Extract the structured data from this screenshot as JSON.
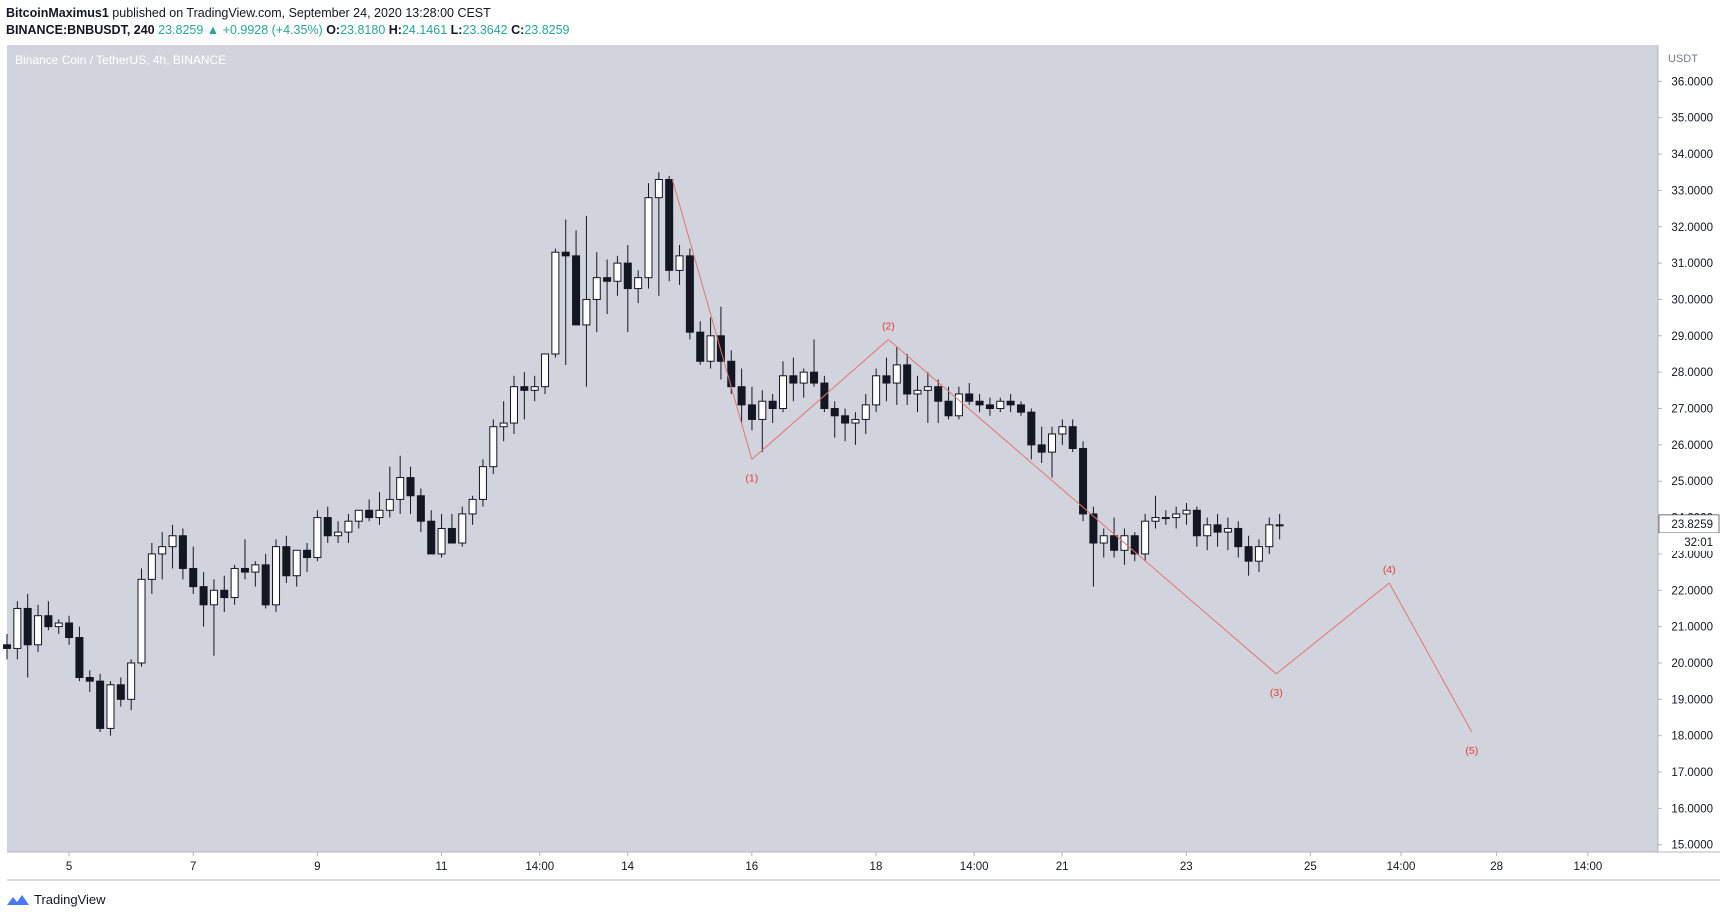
{
  "header": {
    "author": "BitcoinMaximus1",
    "published_text": "published on TradingView.com, September 24, 2020 13:28:00 CEST",
    "symbol": "BINANCE:BNBUSDT, 240",
    "last": "23.8259",
    "change": "▲ +0.9928 (+4.35%)",
    "o_label": "O:",
    "o_value": "23.8180",
    "h_label": "H:",
    "h_value": "24.1461",
    "l_label": "L:",
    "l_value": "23.3642",
    "c_label": "C:",
    "c_value": "23.8259"
  },
  "chart_title": "Binance Coin / TetherUS, 4h, BINANCE",
  "brand": "TradingView",
  "colors": {
    "plot_bg": "#d1d4dc",
    "up_candle": "#ffffff",
    "down_candle": "#131722",
    "wave": "#e57373",
    "wave_label": "#e53935",
    "accent_up": "#26a69a"
  },
  "chart_data": {
    "type": "candlestick",
    "currency": "USDT",
    "ylim": [
      14.8,
      37.0
    ],
    "y_ticks": [
      "15.0000",
      "16.0000",
      "17.0000",
      "18.0000",
      "19.0000",
      "20.0000",
      "21.0000",
      "22.0000",
      "23.0000",
      "24.0000",
      "25.0000",
      "26.0000",
      "27.0000",
      "28.0000",
      "29.0000",
      "30.0000",
      "31.0000",
      "32.0000",
      "33.0000",
      "34.0000",
      "35.0000",
      "36.0000"
    ],
    "x_ticks": [
      {
        "label": "5",
        "t": 5.0
      },
      {
        "label": "7",
        "t": 7.0
      },
      {
        "label": "9",
        "t": 9.0
      },
      {
        "label": "11",
        "t": 11.0
      },
      {
        "label": "14:00",
        "t": 12.583
      },
      {
        "label": "14",
        "t": 14.0
      },
      {
        "label": "16",
        "t": 16.0
      },
      {
        "label": "18",
        "t": 18.0
      },
      {
        "label": "14:00",
        "t": 19.583
      },
      {
        "label": "21",
        "t": 21.0
      },
      {
        "label": "23",
        "t": 23.0
      },
      {
        "label": "25",
        "t": 25.0
      },
      {
        "label": "14:00",
        "t": 26.46
      },
      {
        "label": "28",
        "t": 28.0
      },
      {
        "label": "14:00",
        "t": 29.47
      }
    ],
    "last_price_label": "23.8259",
    "countdown_label": "32:01",
    "t_start": 4.0,
    "t_step": 0.1667,
    "candles": [
      [
        20.5,
        20.8,
        20.1,
        20.4
      ],
      [
        20.4,
        21.7,
        20.1,
        21.5
      ],
      [
        21.5,
        21.9,
        19.6,
        20.5
      ],
      [
        20.5,
        21.6,
        20.3,
        21.3
      ],
      [
        21.3,
        21.7,
        20.9,
        21.0
      ],
      [
        21.0,
        21.2,
        20.8,
        21.1
      ],
      [
        21.1,
        21.3,
        20.5,
        20.7
      ],
      [
        20.7,
        21.0,
        19.5,
        19.6
      ],
      [
        19.6,
        19.8,
        19.2,
        19.5
      ],
      [
        19.5,
        19.7,
        18.1,
        18.2
      ],
      [
        18.2,
        19.5,
        18.0,
        19.4
      ],
      [
        19.4,
        19.6,
        18.8,
        19.0
      ],
      [
        19.0,
        20.1,
        18.7,
        20.0
      ],
      [
        20.0,
        22.6,
        19.9,
        22.3
      ],
      [
        22.3,
        23.3,
        21.9,
        23.0
      ],
      [
        23.0,
        23.6,
        22.3,
        23.2
      ],
      [
        23.2,
        23.8,
        22.6,
        23.5
      ],
      [
        23.5,
        23.7,
        22.3,
        22.6
      ],
      [
        22.6,
        23.2,
        21.9,
        22.1
      ],
      [
        22.1,
        22.5,
        21.0,
        21.6
      ],
      [
        21.6,
        22.3,
        20.2,
        22.0
      ],
      [
        22.0,
        22.4,
        21.4,
        21.8
      ],
      [
        21.8,
        22.7,
        21.6,
        22.6
      ],
      [
        22.6,
        23.4,
        22.3,
        22.5
      ],
      [
        22.5,
        22.8,
        22.1,
        22.7
      ],
      [
        22.7,
        23.0,
        21.5,
        21.6
      ],
      [
        21.6,
        23.4,
        21.4,
        23.2
      ],
      [
        23.2,
        23.5,
        22.2,
        22.4
      ],
      [
        22.4,
        23.1,
        22.1,
        23.1
      ],
      [
        23.1,
        23.3,
        22.5,
        22.9
      ],
      [
        22.9,
        24.2,
        22.8,
        24.0
      ],
      [
        24.0,
        24.3,
        23.3,
        23.5
      ],
      [
        23.5,
        23.9,
        23.3,
        23.6
      ],
      [
        23.6,
        24.1,
        23.3,
        23.9
      ],
      [
        23.9,
        24.2,
        23.7,
        24.2
      ],
      [
        24.2,
        24.5,
        23.9,
        24.0
      ],
      [
        24.0,
        24.7,
        23.8,
        24.2
      ],
      [
        24.2,
        25.4,
        24.0,
        24.5
      ],
      [
        24.5,
        25.7,
        24.1,
        25.1
      ],
      [
        25.1,
        25.4,
        24.1,
        24.6
      ],
      [
        24.6,
        24.8,
        23.6,
        23.9
      ],
      [
        23.9,
        24.2,
        23.0,
        23.0
      ],
      [
        23.0,
        24.1,
        22.9,
        23.7
      ],
      [
        23.7,
        24.1,
        23.3,
        23.3
      ],
      [
        23.3,
        24.3,
        23.2,
        24.1
      ],
      [
        24.1,
        24.6,
        23.8,
        24.5
      ],
      [
        24.5,
        25.6,
        24.3,
        25.4
      ],
      [
        25.4,
        26.7,
        25.2,
        26.5
      ],
      [
        26.5,
        27.2,
        26.1,
        26.6
      ],
      [
        26.6,
        27.9,
        26.3,
        27.6
      ],
      [
        27.6,
        28.0,
        26.7,
        27.5
      ],
      [
        27.5,
        27.9,
        27.2,
        27.6
      ],
      [
        27.6,
        28.3,
        27.4,
        28.5
      ],
      [
        28.5,
        31.4,
        28.4,
        31.3
      ],
      [
        31.3,
        32.2,
        28.2,
        31.2
      ],
      [
        31.2,
        31.9,
        29.4,
        29.3
      ],
      [
        29.3,
        32.3,
        27.6,
        30.0
      ],
      [
        30.0,
        31.3,
        29.1,
        30.6
      ],
      [
        30.6,
        31.1,
        29.6,
        30.5
      ],
      [
        30.5,
        31.2,
        30.1,
        31.0
      ],
      [
        31.0,
        31.5,
        29.1,
        30.3
      ],
      [
        30.3,
        30.8,
        29.9,
        30.6
      ],
      [
        30.6,
        33.2,
        30.3,
        32.8
      ],
      [
        32.8,
        33.5,
        30.1,
        33.3
      ],
      [
        33.3,
        33.4,
        30.5,
        30.8
      ],
      [
        30.8,
        31.5,
        30.4,
        31.2
      ],
      [
        31.2,
        31.4,
        28.9,
        29.1
      ],
      [
        29.1,
        29.4,
        28.2,
        28.3
      ],
      [
        28.3,
        29.5,
        28.1,
        29.0
      ],
      [
        29.0,
        29.8,
        27.8,
        28.3
      ],
      [
        28.3,
        28.6,
        27.4,
        27.6
      ],
      [
        27.6,
        28.1,
        26.6,
        27.1
      ],
      [
        27.1,
        27.6,
        26.4,
        26.7
      ],
      [
        26.7,
        27.5,
        25.8,
        27.2
      ],
      [
        27.2,
        27.4,
        26.6,
        27.0
      ],
      [
        27.0,
        28.3,
        26.9,
        27.9
      ],
      [
        27.9,
        28.4,
        27.2,
        27.7
      ],
      [
        27.7,
        28.1,
        27.3,
        28.0
      ],
      [
        28.0,
        28.9,
        27.6,
        27.7
      ],
      [
        27.7,
        27.9,
        26.9,
        27.0
      ],
      [
        27.0,
        27.2,
        26.2,
        26.8
      ],
      [
        26.8,
        27.0,
        26.1,
        26.6
      ],
      [
        26.6,
        26.9,
        26.0,
        26.7
      ],
      [
        26.7,
        27.4,
        26.3,
        27.1
      ],
      [
        27.1,
        28.1,
        26.9,
        27.9
      ],
      [
        27.9,
        28.4,
        27.2,
        27.7
      ],
      [
        27.7,
        28.7,
        27.1,
        28.2
      ],
      [
        28.2,
        28.5,
        27.1,
        27.4
      ],
      [
        27.4,
        27.9,
        26.9,
        27.5
      ],
      [
        27.5,
        28.0,
        26.6,
        27.6
      ],
      [
        27.6,
        27.8,
        26.6,
        27.2
      ],
      [
        27.2,
        27.6,
        26.7,
        26.8
      ],
      [
        26.8,
        27.6,
        26.7,
        27.4
      ],
      [
        27.4,
        27.7,
        27.1,
        27.2
      ],
      [
        27.2,
        27.4,
        26.9,
        27.1
      ],
      [
        27.1,
        27.3,
        26.8,
        27.0
      ],
      [
        27.0,
        27.3,
        26.9,
        27.2
      ],
      [
        27.2,
        27.4,
        26.9,
        27.1
      ],
      [
        27.1,
        27.2,
        26.8,
        26.9
      ],
      [
        26.9,
        27.0,
        25.6,
        26.0
      ],
      [
        26.0,
        26.5,
        25.5,
        25.8
      ],
      [
        25.8,
        26.5,
        25.1,
        26.3
      ],
      [
        26.3,
        26.7,
        26.0,
        26.5
      ],
      [
        26.5,
        26.7,
        25.8,
        25.9
      ],
      [
        25.9,
        26.1,
        23.9,
        24.1
      ],
      [
        24.1,
        24.3,
        22.1,
        23.3
      ],
      [
        23.3,
        23.7,
        22.9,
        23.5
      ],
      [
        23.5,
        24.0,
        22.9,
        23.1
      ],
      [
        23.1,
        23.7,
        22.7,
        23.5
      ],
      [
        23.5,
        23.6,
        22.8,
        23.0
      ],
      [
        23.0,
        24.1,
        22.8,
        23.9
      ],
      [
        23.9,
        24.6,
        23.7,
        24.0
      ],
      [
        24.0,
        24.2,
        23.8,
        24.0
      ],
      [
        24.0,
        24.3,
        23.7,
        24.1
      ],
      [
        24.1,
        24.4,
        23.8,
        24.2
      ],
      [
        24.2,
        24.3,
        23.2,
        23.5
      ],
      [
        23.5,
        24.0,
        23.1,
        23.8
      ],
      [
        23.8,
        24.1,
        23.2,
        23.6
      ],
      [
        23.6,
        24.0,
        23.1,
        23.7
      ],
      [
        23.7,
        23.9,
        22.9,
        23.2
      ],
      [
        23.2,
        23.5,
        22.4,
        22.8
      ],
      [
        22.8,
        23.4,
        22.5,
        23.2
      ],
      [
        23.2,
        24.0,
        23.0,
        23.8
      ],
      [
        23.8,
        24.1,
        23.4,
        23.8
      ]
    ],
    "wave_points": [
      {
        "label": "",
        "t": 14.72,
        "price": 33.3
      },
      {
        "label": "(1)",
        "t": 16.0,
        "price": 25.6
      },
      {
        "label": "(2)",
        "t": 18.2,
        "price": 28.9
      },
      {
        "label": "(3)",
        "t": 24.45,
        "price": 19.7
      },
      {
        "label": "(4)",
        "t": 26.27,
        "price": 22.2
      },
      {
        "label": "(5)",
        "t": 27.6,
        "price": 18.1
      }
    ]
  }
}
